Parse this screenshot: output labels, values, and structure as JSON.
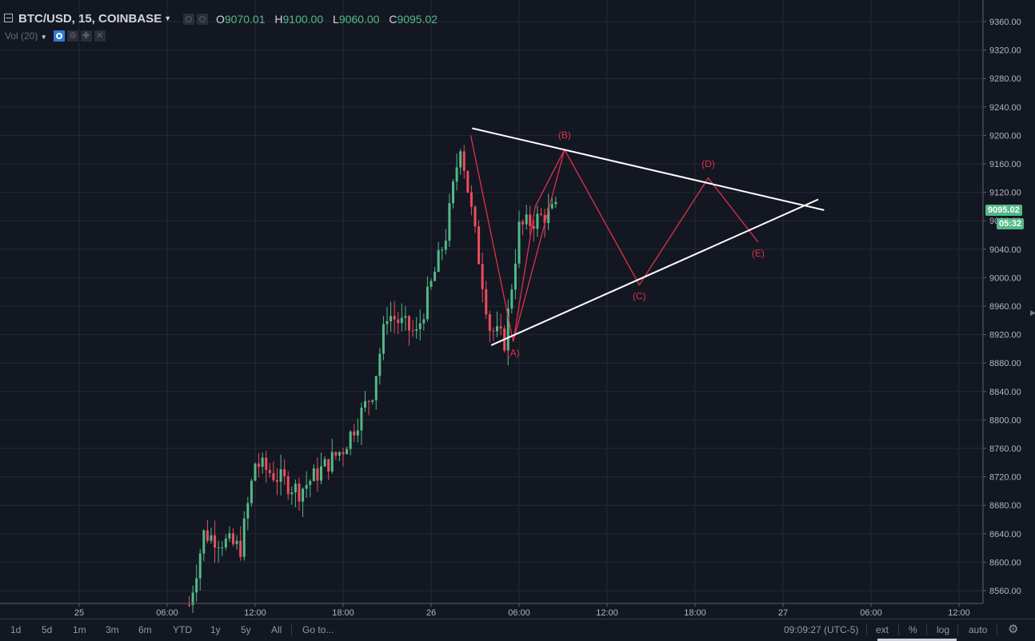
{
  "header": {
    "symbol": "BTC/USD, 15, COINBASE",
    "ohlc": {
      "o_label": "O",
      "o_value": "9070.01",
      "h_label": "H",
      "h_value": "9100.00",
      "l_label": "L",
      "l_value": "9060.00",
      "c_label": "C",
      "c_value": "9095.02"
    }
  },
  "indicator": {
    "label": "Vol (20)"
  },
  "colors": {
    "background": "#131722",
    "grid": "#242833",
    "up": "#53b987",
    "down": "#eb4d5c",
    "wave": "#e0314c",
    "trendline": "#ffffff",
    "axis_text": "#b2b5be"
  },
  "price_axis": {
    "labels": [
      "9360.00",
      "9320.00",
      "9280.00",
      "9240.00",
      "9200.00",
      "9160.00",
      "9120.00",
      "9080.00",
      "9040.00",
      "9000.00",
      "8960.00",
      "8920.00",
      "8880.00",
      "8840.00",
      "8800.00",
      "8760.00",
      "8720.00",
      "8680.00",
      "8640.00",
      "8600.00",
      "8560.00"
    ],
    "current_price": "9095.02",
    "countdown": "05:32"
  },
  "time_axis": {
    "labels": [
      "25",
      "06:00",
      "12:00",
      "18:00",
      "26",
      "06:00",
      "12:00",
      "18:00",
      "27",
      "06:00",
      "12:00"
    ]
  },
  "wave_labels": [
    "(A)",
    "(B)",
    "(C)",
    "(D)",
    "(E)"
  ],
  "bottom_bar": {
    "timeframes": [
      "1d",
      "5d",
      "1m",
      "3m",
      "6m",
      "YTD",
      "1y",
      "5y",
      "All"
    ],
    "goto": "Go to...",
    "clock": "09:09:27 (UTC-5)",
    "ext": "ext",
    "percent": "%",
    "log": "log",
    "auto": "auto"
  },
  "chart_data": {
    "type": "candlestick",
    "symbol": "BTC/USD",
    "interval": "15",
    "y_range": [
      8540,
      9380
    ],
    "price_series_approx": [
      {
        "t": "Jan 25 07:30",
        "close": 8540
      },
      {
        "t": "Jan 25 08:30",
        "close": 8640
      },
      {
        "t": "Jan 25 11:00",
        "close": 8620
      },
      {
        "t": "Jan 25 12:00",
        "close": 8740
      },
      {
        "t": "Jan 25 15:00",
        "close": 8700
      },
      {
        "t": "Jan 25 18:00",
        "close": 8760
      },
      {
        "t": "Jan 25 20:00",
        "close": 8840
      },
      {
        "t": "Jan 25 21:00",
        "close": 8950
      },
      {
        "t": "Jan 25 23:00",
        "close": 8920
      },
      {
        "t": "Jan 26 01:00",
        "close": 9060
      },
      {
        "t": "Jan 26 02:00",
        "close": 9190
      },
      {
        "t": "Jan 26 04:00",
        "close": 8930
      },
      {
        "t": "Jan 26 05:00",
        "close": 8910
      },
      {
        "t": "Jan 26 06:00",
        "close": 9070
      },
      {
        "t": "Jan 26 08:30",
        "close": 9095
      }
    ],
    "elliott_wave": [
      {
        "label": "",
        "price": 9200
      },
      {
        "label": "(A)",
        "price": 8910
      },
      {
        "label": "(B)",
        "price": 9180
      },
      {
        "label": "(C)",
        "price": 8990
      },
      {
        "label": "(D)",
        "price": 9140
      },
      {
        "label": "(E)",
        "price": 9050
      }
    ],
    "trendlines": [
      {
        "name": "upper",
        "from_price": 9210,
        "to_price": 9095
      },
      {
        "name": "lower",
        "from_price": 8905,
        "to_price": 9110
      }
    ]
  }
}
